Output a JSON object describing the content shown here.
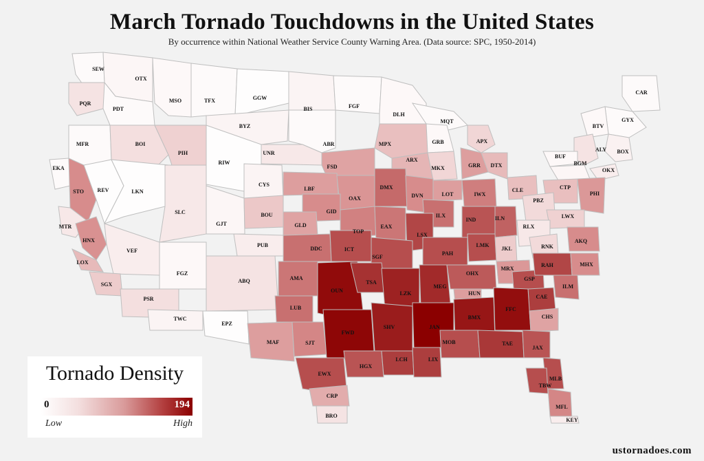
{
  "title": "March Tornado Touchdowns in the United States",
  "subtitle": "By occurrence within National Weather Service County Warning Area. (Data source: SPC, 1950-2014)",
  "legend": {
    "title": "Tornado Density",
    "min_value": "0",
    "max_value": "194",
    "low_label": "Low",
    "high_label": "High"
  },
  "website": "ustornadoes.com",
  "colors": {
    "background": "#f2f2f2",
    "low": "#ffffff",
    "high": "#8b0000",
    "border": "#bfbfbf"
  },
  "regions": [
    {
      "code": "SEW",
      "level": 0.02
    },
    {
      "code": "OTX",
      "level": 0.04
    },
    {
      "code": "PQR",
      "level": 0.12
    },
    {
      "code": "PDT",
      "level": 0.02
    },
    {
      "code": "MSO",
      "level": 0.03
    },
    {
      "code": "TFX",
      "level": 0.02
    },
    {
      "code": "GGW",
      "level": 0.01
    },
    {
      "code": "BIS",
      "level": 0.05
    },
    {
      "code": "FGF",
      "level": 0.02
    },
    {
      "code": "DLH",
      "level": 0.03
    },
    {
      "code": "MQT",
      "level": 0.02
    },
    {
      "code": "CAR",
      "level": 0.02
    },
    {
      "code": "GYX",
      "level": 0.02
    },
    {
      "code": "BTV",
      "level": 0.03
    },
    {
      "code": "MFR",
      "level": 0.02
    },
    {
      "code": "BOI",
      "level": 0.14
    },
    {
      "code": "BYZ",
      "level": 0.05
    },
    {
      "code": "ALY",
      "level": 0.12
    },
    {
      "code": "BOX",
      "level": 0.06
    },
    {
      "code": "APX",
      "level": 0.18
    },
    {
      "code": "GRB",
      "level": 0.03
    },
    {
      "code": "MPX",
      "level": 0.28
    },
    {
      "code": "ABR",
      "level": 0.02
    },
    {
      "code": "UNR",
      "level": 0.1
    },
    {
      "code": "PIH",
      "level": 0.2
    },
    {
      "code": "BUF",
      "level": 0.03
    },
    {
      "code": "BGM",
      "level": 0.04
    },
    {
      "code": "OKX",
      "level": 0.08
    },
    {
      "code": "EKA",
      "level": 0.02
    },
    {
      "code": "STO",
      "level": 0.5
    },
    {
      "code": "REV",
      "level": 0.01
    },
    {
      "code": "LKN",
      "level": 0.01
    },
    {
      "code": "RIW",
      "level": 0.01
    },
    {
      "code": "CYS",
      "level": 0.05
    },
    {
      "code": "FSD",
      "level": 0.4
    },
    {
      "code": "ARX",
      "level": 0.32
    },
    {
      "code": "MKX",
      "level": 0.18
    },
    {
      "code": "GRR",
      "level": 0.42
    },
    {
      "code": "DTX",
      "level": 0.3
    },
    {
      "code": "CLE",
      "level": 0.28
    },
    {
      "code": "CTP",
      "level": 0.28
    },
    {
      "code": "PHI",
      "level": 0.45
    },
    {
      "code": "LBF",
      "level": 0.42
    },
    {
      "code": "OAX",
      "level": 0.46
    },
    {
      "code": "DMX",
      "level": 0.62
    },
    {
      "code": "DVN",
      "level": 0.5
    },
    {
      "code": "LOT",
      "level": 0.42
    },
    {
      "code": "IWX",
      "level": 0.55
    },
    {
      "code": "PBZ",
      "level": 0.16
    },
    {
      "code": "SLC",
      "level": 0.1
    },
    {
      "code": "GJT",
      "level": 0.04
    },
    {
      "code": "BOU",
      "level": 0.24
    },
    {
      "code": "GID",
      "level": 0.5
    },
    {
      "code": "GLD",
      "level": 0.4
    },
    {
      "code": "TOP",
      "level": 0.54
    },
    {
      "code": "EAX",
      "level": 0.58
    },
    {
      "code": "ILX",
      "level": 0.6
    },
    {
      "code": "IND",
      "level": 0.7
    },
    {
      "code": "ILN",
      "level": 0.65
    },
    {
      "code": "LWX",
      "level": 0.2
    },
    {
      "code": "MTR",
      "level": 0.1
    },
    {
      "code": "HNX",
      "level": 0.48
    },
    {
      "code": "LOX",
      "level": 0.3
    },
    {
      "code": "VEF",
      "level": 0.08
    },
    {
      "code": "PUB",
      "level": 0.08
    },
    {
      "code": "DDC",
      "level": 0.6
    },
    {
      "code": "ICT",
      "level": 0.72
    },
    {
      "code": "LSX",
      "level": 0.75
    },
    {
      "code": "SGF",
      "level": 0.72
    },
    {
      "code": "PAH",
      "level": 0.72
    },
    {
      "code": "LMK",
      "level": 0.72
    },
    {
      "code": "JKL",
      "level": 0.22
    },
    {
      "code": "RLX",
      "level": 0.1
    },
    {
      "code": "RNK",
      "level": 0.16
    },
    {
      "code": "AKQ",
      "level": 0.5
    },
    {
      "code": "SGX",
      "level": 0.22
    },
    {
      "code": "FGZ",
      "level": 0.03
    },
    {
      "code": "ABQ",
      "level": 0.12
    },
    {
      "code": "AMA",
      "level": 0.58
    },
    {
      "code": "OUN",
      "level": 0.96
    },
    {
      "code": "TSA",
      "level": 0.82
    },
    {
      "code": "LZK",
      "level": 0.88
    },
    {
      "code": "MEG",
      "level": 0.85
    },
    {
      "code": "OHX",
      "level": 0.68
    },
    {
      "code": "MRX",
      "level": 0.45
    },
    {
      "code": "GSP",
      "level": 0.72
    },
    {
      "code": "RAH",
      "level": 0.75
    },
    {
      "code": "MHX",
      "level": 0.5
    },
    {
      "code": "PSR",
      "level": 0.14
    },
    {
      "code": "TWC",
      "level": 0.05
    },
    {
      "code": "EPZ",
      "level": 0.01
    },
    {
      "code": "LUB",
      "level": 0.6
    },
    {
      "code": "HUN",
      "level": 0.42
    },
    {
      "code": "CAE",
      "level": 0.78
    },
    {
      "code": "ILM",
      "level": 0.6
    },
    {
      "code": "MAF",
      "level": 0.42
    },
    {
      "code": "SJT",
      "level": 0.52
    },
    {
      "code": "FWD",
      "level": 0.98
    },
    {
      "code": "SHV",
      "level": 0.9
    },
    {
      "code": "JAN",
      "level": 1.0
    },
    {
      "code": "BMX",
      "level": 0.92
    },
    {
      "code": "FFC",
      "level": 0.95
    },
    {
      "code": "CHS",
      "level": 0.4
    },
    {
      "code": "EWX",
      "level": 0.72
    },
    {
      "code": "HGX",
      "level": 0.7
    },
    {
      "code": "LCH",
      "level": 0.78
    },
    {
      "code": "LIX",
      "level": 0.78
    },
    {
      "code": "MOB",
      "level": 0.72
    },
    {
      "code": "TAE",
      "level": 0.8
    },
    {
      "code": "JAX",
      "level": 0.7
    },
    {
      "code": "CRP",
      "level": 0.36
    },
    {
      "code": "BRO",
      "level": 0.12
    },
    {
      "code": "MLB",
      "level": 0.72
    },
    {
      "code": "TBW",
      "level": 0.72
    },
    {
      "code": "MFL",
      "level": 0.52
    },
    {
      "code": "KEY",
      "level": 0.08
    }
  ]
}
